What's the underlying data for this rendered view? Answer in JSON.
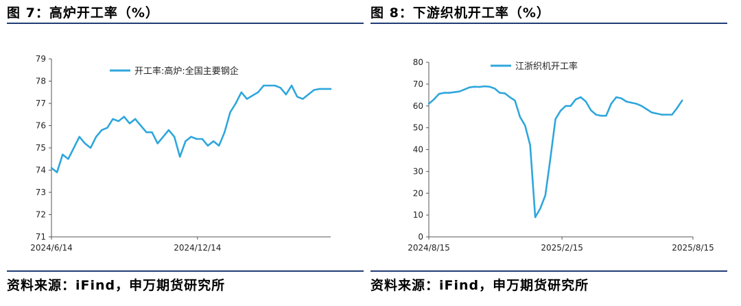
{
  "figures": [
    {
      "title": "图 7：高炉开工率（%）",
      "source": "资料来源：iFind，申万期货研究所"
    },
    {
      "title": "图 8：下游织机开工率（%）",
      "source": "资料来源：iFind，申万期货研究所"
    }
  ],
  "chart_data": [
    {
      "type": "line",
      "title": "",
      "xlabel": "",
      "ylabel": "",
      "ylim": [
        71,
        79
      ],
      "yticks": [
        71,
        72,
        73,
        74,
        75,
        76,
        77,
        78,
        79
      ],
      "xtick_labels": [
        "2024/6/14",
        "2024/12/14"
      ],
      "legend_position": "top-center",
      "color": "#2ea6dc",
      "grid": false,
      "series": [
        {
          "name": "开工率:高炉:全国主要钢企",
          "x": [
            "2024-06-14",
            "2024-06-21",
            "2024-06-28",
            "2024-07-05",
            "2024-07-12",
            "2024-07-19",
            "2024-07-26",
            "2024-08-02",
            "2024-08-09",
            "2024-08-16",
            "2024-08-23",
            "2024-08-30",
            "2024-09-06",
            "2024-09-13",
            "2024-09-20",
            "2024-09-27",
            "2024-10-04",
            "2024-10-11",
            "2024-10-18",
            "2024-10-25",
            "2024-11-01",
            "2024-11-08",
            "2024-11-15",
            "2024-11-22",
            "2024-11-29",
            "2024-12-06",
            "2024-12-13",
            "2024-12-20",
            "2024-12-27",
            "2025-01-03",
            "2025-01-10",
            "2025-01-17",
            "2025-01-24",
            "2025-01-31",
            "2025-02-07",
            "2025-02-14",
            "2025-02-21",
            "2025-02-28",
            "2025-03-07",
            "2025-03-14",
            "2025-03-21",
            "2025-03-28",
            "2025-04-04",
            "2025-04-11",
            "2025-04-18",
            "2025-04-25",
            "2025-05-02",
            "2025-05-09",
            "2025-05-16",
            "2025-05-23",
            "2025-05-30"
          ],
          "values": [
            74.1,
            73.9,
            74.7,
            74.5,
            75.0,
            75.5,
            75.2,
            75.0,
            75.5,
            75.8,
            75.9,
            76.3,
            76.2,
            76.4,
            76.1,
            76.3,
            76.0,
            75.7,
            75.7,
            75.2,
            75.5,
            75.8,
            75.5,
            74.6,
            75.3,
            75.5,
            75.4,
            75.4,
            75.1,
            75.3,
            75.1,
            75.7,
            76.6,
            77.0,
            77.5,
            77.2,
            77.35,
            77.5,
            77.8,
            77.8,
            77.8,
            77.7,
            77.4,
            77.8,
            77.3,
            77.2,
            77.4,
            77.6,
            77.65,
            77.65,
            77.65
          ]
        }
      ]
    },
    {
      "type": "line",
      "title": "",
      "xlabel": "",
      "ylabel": "",
      "ylim": [
        0,
        80
      ],
      "yticks": [
        0,
        10,
        20,
        30,
        40,
        50,
        60,
        70,
        80
      ],
      "xtick_labels": [
        "2024/8/15",
        "2025/2/15",
        "2025/8/15"
      ],
      "legend_position": "top-center",
      "color": "#2ea6dc",
      "grid": false,
      "series": [
        {
          "name": "江浙织机开工率",
          "x": [
            "2024-08-15",
            "2024-08-22",
            "2024-08-29",
            "2024-09-05",
            "2024-09-12",
            "2024-09-19",
            "2024-09-26",
            "2024-10-03",
            "2024-10-10",
            "2024-10-17",
            "2024-10-24",
            "2024-10-31",
            "2024-11-07",
            "2024-11-14",
            "2024-11-21",
            "2024-11-28",
            "2024-12-05",
            "2024-12-12",
            "2024-12-19",
            "2024-12-26",
            "2025-01-02",
            "2025-01-09",
            "2025-01-16",
            "2025-01-23",
            "2025-01-30",
            "2025-02-06",
            "2025-02-13",
            "2025-02-20",
            "2025-02-27",
            "2025-03-06",
            "2025-03-13",
            "2025-03-20",
            "2025-03-27",
            "2025-04-03",
            "2025-04-10",
            "2025-04-17",
            "2025-04-24",
            "2025-05-01",
            "2025-05-08",
            "2025-05-15",
            "2025-05-22",
            "2025-05-29",
            "2025-06-05",
            "2025-06-12",
            "2025-06-19",
            "2025-06-26",
            "2025-07-03",
            "2025-07-10",
            "2025-07-17",
            "2025-07-24",
            "2025-07-31"
          ],
          "values": [
            61,
            63,
            65.5,
            66,
            66,
            66.3,
            66.6,
            67.5,
            68.5,
            68.8,
            68.7,
            69,
            68.8,
            68,
            66,
            65.8,
            64,
            62.5,
            55,
            51,
            42,
            9,
            13,
            19,
            36,
            54,
            57.8,
            60,
            60,
            63,
            64,
            62,
            58,
            56,
            55.5,
            55.5,
            61,
            64,
            63.5,
            62,
            61.5,
            61,
            60,
            58.5,
            57,
            56.5,
            56,
            56,
            56,
            59,
            62.5
          ]
        }
      ]
    }
  ]
}
